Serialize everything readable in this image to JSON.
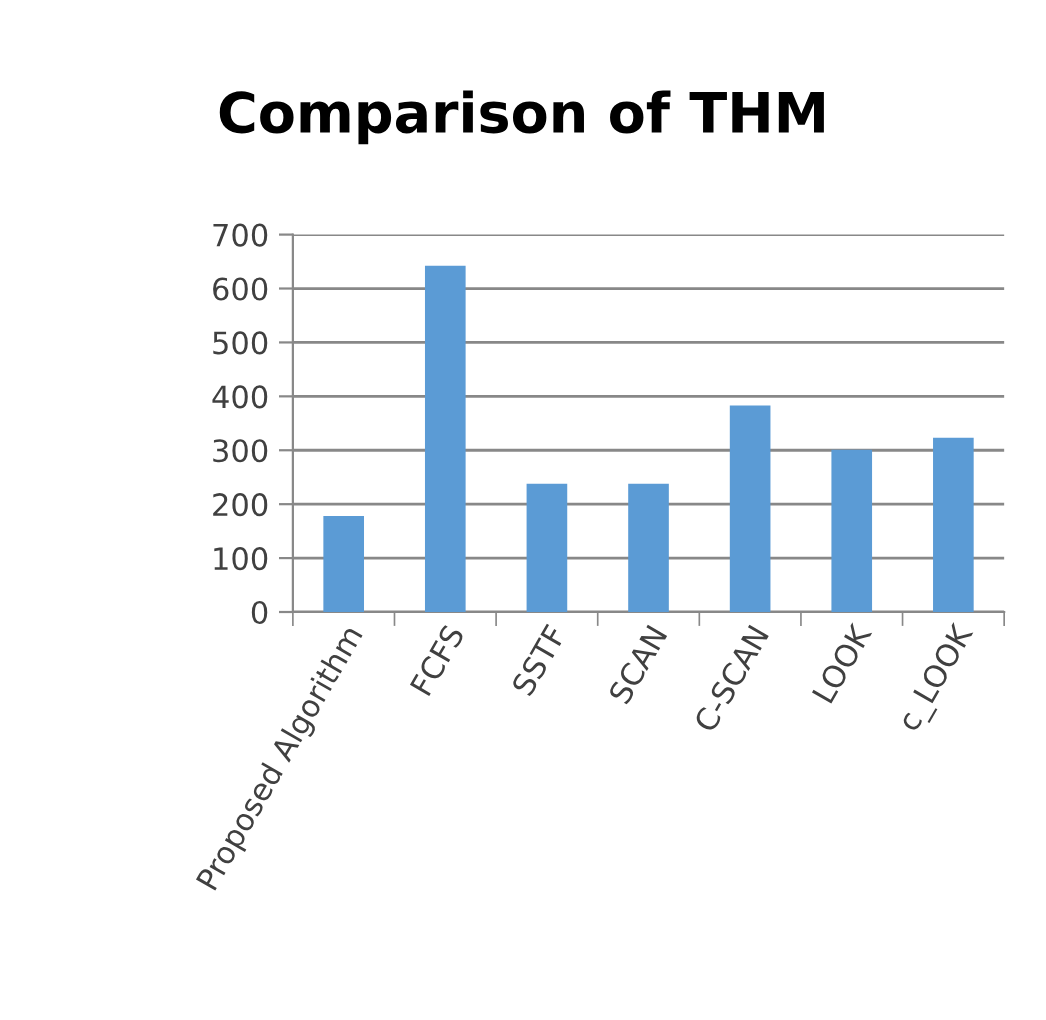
{
  "chart_data": {
    "type": "bar",
    "title": "Comparison of THM",
    "categories": [
      "Proposed Algorithm",
      "FCFS",
      "SSTF",
      "SCAN",
      "C-SCAN",
      "LOOK",
      "c_LOOK"
    ],
    "values": [
      178,
      642,
      238,
      238,
      383,
      301,
      323
    ],
    "color": "#5b9bd5",
    "ylim": [
      0,
      700
    ],
    "yticks": [
      0,
      100,
      200,
      300,
      400,
      500,
      600,
      700
    ],
    "grid": "y",
    "legend": false
  }
}
